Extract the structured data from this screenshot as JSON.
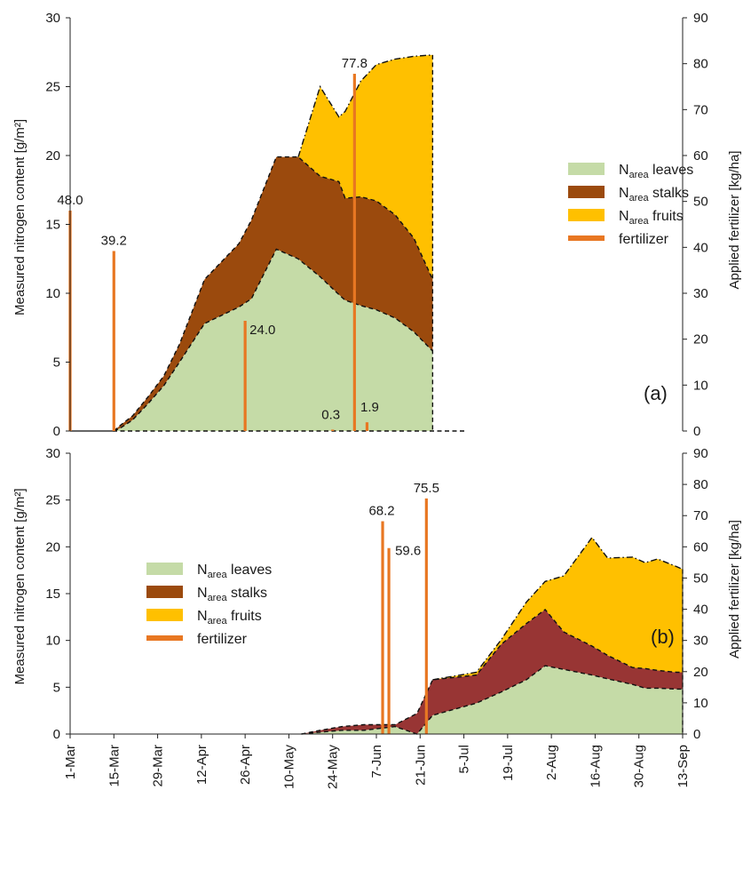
{
  "chart_data": [
    {
      "type": "area",
      "panel_label": "(a)",
      "ylabel_left": "Measured nitrogen content  [g/m²]",
      "ylabel_right": "Applied fertilizer  [kg/ha]",
      "ylim_left": [
        0,
        30
      ],
      "yticks_left": [
        "0",
        "5",
        "10",
        "15",
        "20",
        "25",
        "30"
      ],
      "ylim_right": [
        0,
        90
      ],
      "yticks_right": [
        "0",
        "10",
        "20",
        "30",
        "40",
        "50",
        "60",
        "70",
        "80",
        "90"
      ],
      "legend": {
        "position": "right",
        "entries": [
          {
            "base": "N",
            "sub": "area",
            "text": " leaves",
            "color": "#c5dba7"
          },
          {
            "base": "N",
            "sub": "area",
            "text": " stalks",
            "color": "#9b4a0d"
          },
          {
            "base": "N",
            "sub": "area",
            "text": " fruits",
            "color": "#ffc000"
          },
          {
            "base": "",
            "sub": "",
            "text": "fertilizer",
            "color": "#e87722"
          }
        ]
      },
      "x": [
        14,
        16,
        20,
        25,
        30,
        35,
        43,
        54,
        58,
        66,
        72,
        73,
        80,
        86,
        88,
        93,
        98,
        104,
        110,
        116
      ],
      "series": [
        {
          "name": "N area leaves",
          "color": "#c5dba7",
          "values": [
            0,
            0.2,
            0.8,
            2,
            3.3,
            5,
            7.8,
            9,
            9.6,
            13.2,
            12.6,
            12.5,
            11.2,
            9.9,
            9.5,
            9.1,
            8.8,
            8.2,
            7.2,
            5.8
          ]
        },
        {
          "name": "N area stalks",
          "color": "#9b4a0d",
          "values": [
            0,
            0.2,
            0.3,
            0.5,
            0.7,
            1.3,
            3.2,
            4.6,
            5.7,
            6.7,
            7.3,
            7.4,
            7.3,
            8.2,
            7.4,
            7.9,
            7.9,
            7.5,
            6.8,
            5.2
          ]
        },
        {
          "name": "N area fruits",
          "color": "#ffc000",
          "values": [
            0,
            0,
            0,
            0,
            0,
            0,
            0,
            0,
            0,
            0,
            0,
            0,
            6.5,
            4.7,
            6.3,
            8.4,
            9.9,
            11.3,
            13.2,
            16.3
          ]
        }
      ],
      "fertilizer": [
        {
          "x": 0,
          "value": 48.0,
          "label": "48.0"
        },
        {
          "x": 14,
          "value": 39.2,
          "label": "39.2"
        },
        {
          "x": 56,
          "value": 24.0,
          "label": "24.0"
        },
        {
          "x": 84,
          "value": 0.3,
          "label": "0.3"
        },
        {
          "x": 91,
          "value": 77.8,
          "label": "77.8"
        },
        {
          "x": 95,
          "value": 1.9,
          "label": "1.9"
        }
      ]
    },
    {
      "type": "area",
      "panel_label": "(b)",
      "ylabel_left": "Measured nitrogen content  [g/m²]",
      "ylabel_right": "Applied fertilizer  [kg/ha]",
      "ylim_left": [
        0,
        30
      ],
      "yticks_left": [
        "0",
        "5",
        "10",
        "15",
        "20",
        "25",
        "30"
      ],
      "ylim_right": [
        0,
        90
      ],
      "yticks_right": [
        "0",
        "10",
        "20",
        "30",
        "40",
        "50",
        "60",
        "70",
        "80",
        "90"
      ],
      "xticks": [
        "1-Mar",
        "15-Mar",
        "29-Mar",
        "12-Apr",
        "26-Apr",
        "10-May",
        "24-May",
        "7-Jun",
        "21-Jun",
        "5-Jul",
        "19-Jul",
        "2-Aug",
        "16-Aug",
        "30-Aug",
        "13-Sep"
      ],
      "xlim": [
        0,
        196
      ],
      "legend": {
        "position": "upper-left",
        "entries": [
          {
            "base": "N",
            "sub": "area",
            "text": " leaves",
            "color": "#c5dba7"
          },
          {
            "base": "N",
            "sub": "area",
            "text": " stalks",
            "color": "#9b4a0d"
          },
          {
            "base": "N",
            "sub": "area",
            "text": " fruits",
            "color": "#ffc000"
          },
          {
            "base": "",
            "sub": "",
            "text": "fertilizer",
            "color": "#e87722"
          }
        ]
      },
      "x": [
        74,
        80,
        87,
        94,
        104,
        111,
        116,
        130,
        138,
        146,
        152,
        158,
        167,
        172,
        180,
        184,
        188,
        194,
        196
      ],
      "series": [
        {
          "name": "N area leaves",
          "color": "#c5dba7",
          "values": [
            0,
            0.2,
            0.4,
            0.4,
            0.8,
            0,
            2,
            3.3,
            4.5,
            5.8,
            7.3,
            6.9,
            6.3,
            5.9,
            5.3,
            4.9,
            4.9,
            4.8,
            4.8
          ]
        },
        {
          "name": "N area stalks",
          "color": "#983534",
          "values": [
            0,
            0.2,
            0.4,
            0.6,
            0.2,
            2.2,
            3.8,
            3,
            5.1,
            6,
            6,
            4,
            3.1,
            2.5,
            1.8,
            2.1,
            1.9,
            1.8,
            1.8
          ]
        },
        {
          "name": "N area fruits",
          "color": "#ffc000",
          "values": [
            0,
            0,
            0,
            0,
            0,
            0,
            0,
            0.3,
            0.5,
            2.3,
            3,
            6,
            11.6,
            10.4,
            11.8,
            11.3,
            11.9,
            11.3,
            11
          ]
        }
      ],
      "fertilizer": [
        {
          "x": 100,
          "value": 68.2,
          "label": "68.2"
        },
        {
          "x": 102,
          "value": 59.6,
          "label": "59.6"
        },
        {
          "x": 114,
          "value": 75.5,
          "label": "75.5"
        }
      ]
    }
  ]
}
